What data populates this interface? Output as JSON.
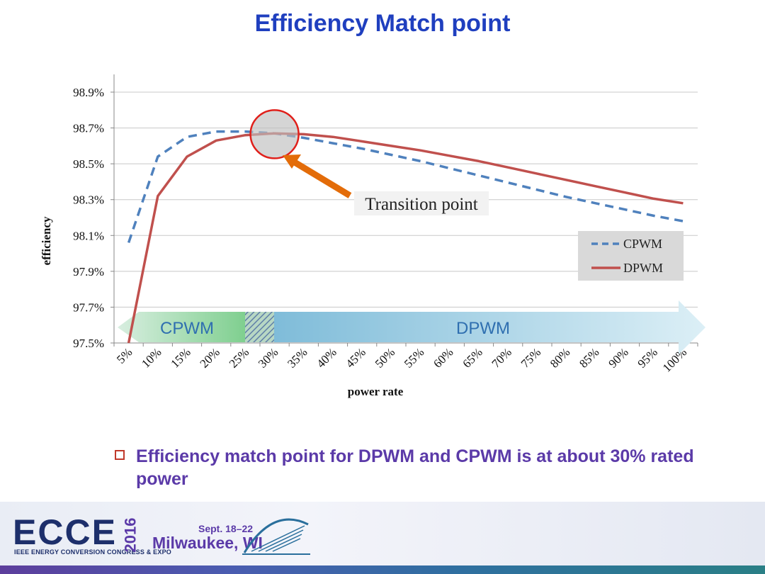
{
  "slide": {
    "title": "Efficiency Match point",
    "bullet": "Efficiency match point for DPWM and CPWM is  at about 30% rated power"
  },
  "chart_data": {
    "type": "line",
    "categories": [
      "5%",
      "10%",
      "15%",
      "20%",
      "25%",
      "30%",
      "35%",
      "40%",
      "45%",
      "50%",
      "55%",
      "60%",
      "65%",
      "70%",
      "75%",
      "80%",
      "85%",
      "90%",
      "95%",
      "100%"
    ],
    "series": [
      {
        "name": "CPWM",
        "style": "dashed",
        "color": "#4f81bd",
        "values": [
          98.06,
          98.54,
          98.65,
          98.68,
          98.68,
          98.67,
          98.645,
          98.615,
          98.585,
          98.55,
          98.515,
          98.475,
          98.435,
          98.395,
          98.355,
          98.315,
          98.28,
          98.245,
          98.21,
          98.18
        ]
      },
      {
        "name": "DPWM",
        "style": "solid",
        "color": "#c0504d",
        "values": [
          97.5,
          98.32,
          98.54,
          98.63,
          98.66,
          98.67,
          98.665,
          98.65,
          98.625,
          98.6,
          98.575,
          98.545,
          98.515,
          98.48,
          98.445,
          98.41,
          98.375,
          98.34,
          98.305,
          98.28
        ]
      }
    ],
    "ylim": [
      97.5,
      98.9
    ],
    "yticks": [
      "97.5%",
      "97.7%",
      "97.9%",
      "98.1%",
      "98.3%",
      "98.5%",
      "98.7%",
      "98.9%"
    ],
    "ytick_values": [
      97.5,
      97.7,
      97.9,
      98.1,
      98.3,
      98.5,
      98.7,
      98.9
    ],
    "xlabel": "power rate",
    "ylabel": "efficiency",
    "legend_position": "right",
    "annotation": {
      "text": "Transition point",
      "at_category": "30%",
      "value": 98.665
    },
    "regions": {
      "cpwm_label": "CPWM",
      "dpwm_label": "DPWM",
      "transition_span": [
        "27.5%",
        "30%"
      ]
    },
    "colors": {
      "cpwm": "#4f81bd",
      "dpwm": "#c0504d",
      "arrow": "#e36c09",
      "title": "#1f3fbf"
    }
  },
  "footer": {
    "logo": "ECCE",
    "year": "2016",
    "subtitle": "IEEE ENERGY CONVERSION CONGRESS & EXPO",
    "dates": "Sept. 18–22",
    "city": "Milwaukee, WI"
  }
}
